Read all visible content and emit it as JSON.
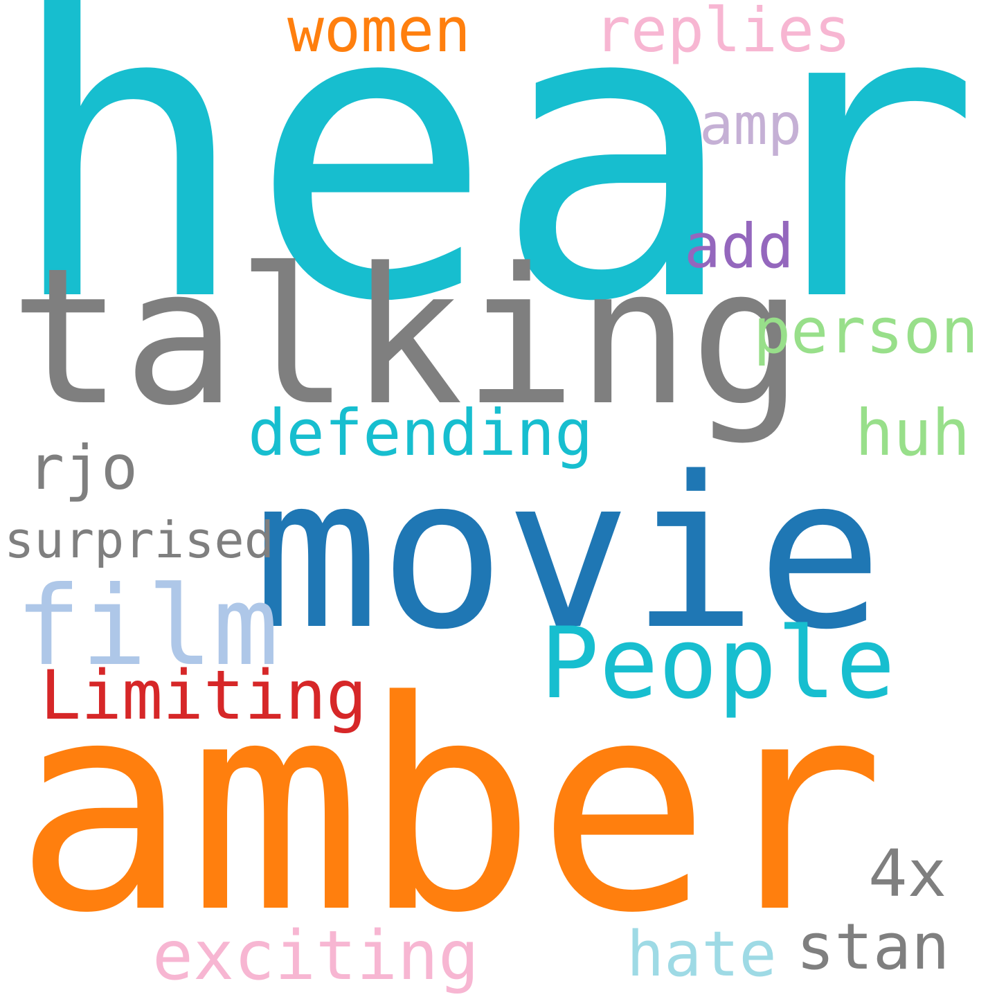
{
  "words": {
    "heard": {
      "text": "heard",
      "color": "#17becf"
    },
    "women": {
      "text": "women",
      "color": "#ff7f0e"
    },
    "replies": {
      "text": "replies",
      "color": "#f7b6d2"
    },
    "amp": {
      "text": "amp",
      "color": "#c5b0d5"
    },
    "add": {
      "text": "add",
      "color": "#9467bd"
    },
    "talking": {
      "text": "talking",
      "color": "#7f7f7f"
    },
    "person": {
      "text": "person",
      "color": "#98df8a"
    },
    "defending": {
      "text": "defending",
      "color": "#17becf"
    },
    "huh": {
      "text": "huh",
      "color": "#98df8a"
    },
    "rjo": {
      "text": "rjo",
      "color": "#7f7f7f"
    },
    "movie": {
      "text": "movie",
      "color": "#1f77b4"
    },
    "surprised": {
      "text": "surprised",
      "color": "#7f7f7f"
    },
    "film": {
      "text": "film",
      "color": "#aec7e8"
    },
    "people": {
      "text": "People",
      "color": "#17becf"
    },
    "limiting": {
      "text": "Limiting",
      "color": "#d62728"
    },
    "amber": {
      "text": "amber",
      "color": "#ff7f0e"
    },
    "four_x": {
      "text": "4x",
      "color": "#7f7f7f"
    },
    "exciting": {
      "text": "exciting",
      "color": "#f7b6d2"
    },
    "hate": {
      "text": "hate",
      "color": "#9edae5"
    },
    "stan": {
      "text": "stan",
      "color": "#7f7f7f"
    }
  }
}
